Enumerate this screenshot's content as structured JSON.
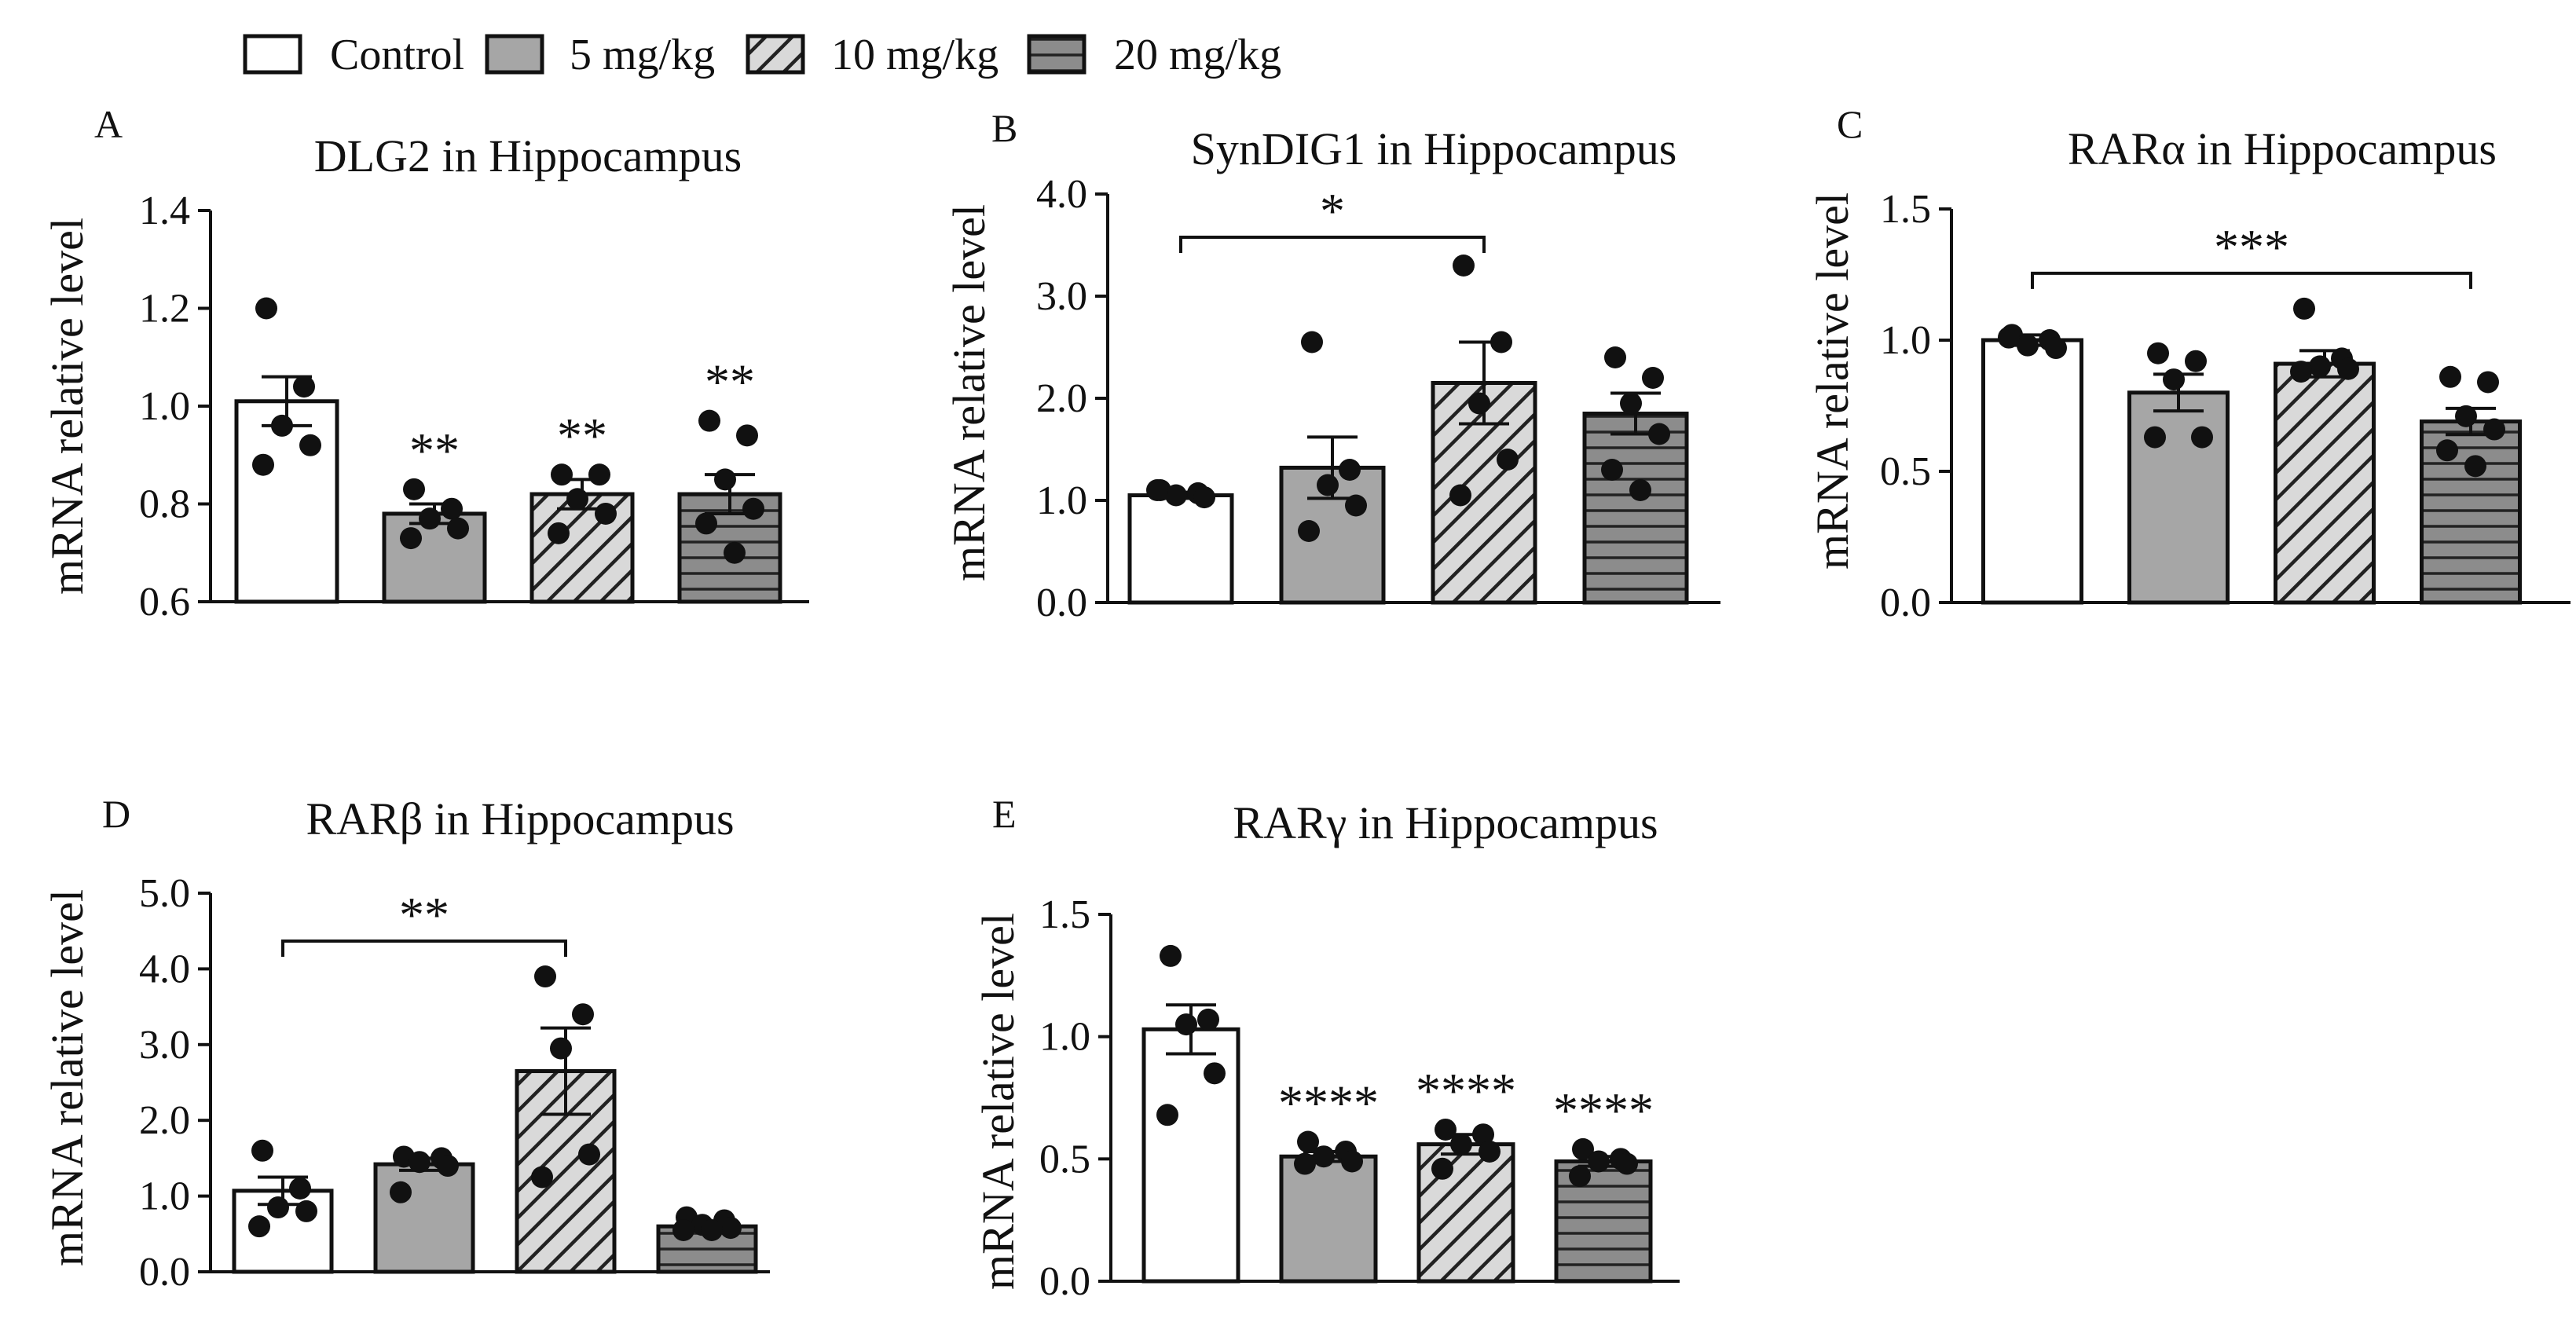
{
  "legend": {
    "items": [
      {
        "label": "Control",
        "pattern": "white"
      },
      {
        "label": "5 mg/kg",
        "pattern": "gray"
      },
      {
        "label": "10 mg/kg",
        "pattern": "diag"
      },
      {
        "label": "20 mg/kg",
        "pattern": "horiz"
      }
    ]
  },
  "colors": {
    "bar_gray": "#a6a6a6",
    "hatch_bg": "#d9d9d9",
    "horiz_bg": "#8c8c8c",
    "ink": "#111111"
  },
  "chart_data": [
    {
      "panel": "A",
      "type": "bar",
      "title": "DLG2 in Hippocampus",
      "ylabel": "mRNA relative level",
      "ylim": [
        0.6,
        1.4
      ],
      "yticks": [
        "0.6",
        "0.8",
        "1.0",
        "1.2",
        "1.4"
      ],
      "categories": [
        "Control",
        "5 mg/kg",
        "10 mg/kg",
        "20 mg/kg"
      ],
      "values": [
        1.01,
        0.78,
        0.82,
        0.82
      ],
      "sem": [
        0.05,
        0.02,
        0.03,
        0.04
      ],
      "points": [
        [
          1.2,
          1.04,
          0.96,
          0.92,
          0.88
        ],
        [
          0.83,
          0.79,
          0.77,
          0.75,
          0.73
        ],
        [
          0.86,
          0.86,
          0.81,
          0.78,
          0.74
        ],
        [
          0.97,
          0.94,
          0.85,
          0.79,
          0.76,
          0.7
        ]
      ],
      "significance": [
        {
          "bar": 1,
          "label": "**"
        },
        {
          "bar": 2,
          "label": "**"
        },
        {
          "bar": 3,
          "label": "**"
        }
      ]
    },
    {
      "panel": "B",
      "type": "bar",
      "title": "SynDIG1 in Hippocampus",
      "ylabel": "mRNA relative level",
      "ylim": [
        0.0,
        4.0
      ],
      "yticks": [
        "0.0",
        "1.0",
        "2.0",
        "3.0",
        "4.0"
      ],
      "categories": [
        "Control",
        "5 mg/kg",
        "10 mg/kg",
        "20 mg/kg"
      ],
      "values": [
        1.05,
        1.32,
        2.15,
        1.85
      ],
      "sem": [
        0.03,
        0.3,
        0.4,
        0.2
      ],
      "points": [
        [
          1.1,
          1.07,
          1.05,
          1.03,
          1.1
        ],
        [
          2.55,
          1.3,
          1.15,
          0.95,
          0.7
        ],
        [
          3.3,
          2.55,
          1.95,
          1.4,
          1.05
        ],
        [
          2.4,
          2.2,
          1.95,
          1.65,
          1.3,
          1.1
        ]
      ],
      "significance": [
        {
          "from": 0,
          "to": 2,
          "label": "*"
        }
      ]
    },
    {
      "panel": "C",
      "type": "bar",
      "title": "RARα in  Hippocampus",
      "ylabel": "mRNA relative level",
      "ylim": [
        0.0,
        1.5
      ],
      "yticks": [
        "0.0",
        "0.5",
        "1.0",
        "1.5"
      ],
      "categories": [
        "Control",
        "5 mg/kg",
        "10 mg/kg",
        "20 mg/kg"
      ],
      "values": [
        1.0,
        0.8,
        0.91,
        0.69
      ],
      "sem": [
        0.02,
        0.07,
        0.05,
        0.05
      ],
      "points": [
        [
          1.02,
          1.0,
          0.98,
          0.97,
          1.01
        ],
        [
          0.95,
          0.92,
          0.85,
          0.63,
          0.63
        ],
        [
          1.12,
          0.93,
          0.9,
          0.89,
          0.88
        ],
        [
          0.86,
          0.84,
          0.71,
          0.66,
          0.58,
          0.52
        ]
      ],
      "significance": [
        {
          "from": 0,
          "to": 3,
          "label": "***"
        }
      ]
    },
    {
      "panel": "D",
      "type": "bar",
      "title": "RARβ in Hippocampus",
      "ylabel": "mRNA relative level",
      "ylim": [
        0.0,
        5.0
      ],
      "yticks": [
        "0.0",
        "1.0",
        "2.0",
        "3.0",
        "4.0",
        "5.0"
      ],
      "categories": [
        "Control",
        "5 mg/kg",
        "10 mg/kg",
        "20 mg/kg"
      ],
      "values": [
        1.07,
        1.42,
        2.65,
        0.6
      ],
      "sem": [
        0.18,
        0.08,
        0.57,
        0.04
      ],
      "points": [
        [
          1.6,
          1.1,
          0.85,
          0.8,
          0.6
        ],
        [
          1.52,
          1.5,
          1.45,
          1.4,
          1.05
        ],
        [
          3.9,
          3.4,
          2.95,
          1.55,
          1.25
        ],
        [
          0.72,
          0.68,
          0.62,
          0.58,
          0.55,
          0.55
        ]
      ],
      "significance": [
        {
          "from": 0,
          "to": 2,
          "label": "**"
        }
      ]
    },
    {
      "panel": "E",
      "type": "bar",
      "title": "RARγ in Hippocampus",
      "ylabel": "mRNA relative level",
      "ylim": [
        0.0,
        1.5
      ],
      "yticks": [
        "0.0",
        "0.5",
        "1.0",
        "1.5"
      ],
      "categories": [
        "Control",
        "5 mg/kg",
        "10 mg/kg",
        "20 mg/kg"
      ],
      "values": [
        1.03,
        0.51,
        0.56,
        0.49
      ],
      "sem": [
        0.1,
        0.02,
        0.04,
        0.02
      ],
      "points": [
        [
          1.33,
          1.07,
          1.05,
          0.85,
          0.68
        ],
        [
          0.57,
          0.53,
          0.51,
          0.49,
          0.48
        ],
        [
          0.62,
          0.6,
          0.56,
          0.53,
          0.46
        ],
        [
          0.54,
          0.5,
          0.49,
          0.48,
          0.43
        ]
      ],
      "significance": [
        {
          "bar": 1,
          "label": "****"
        },
        {
          "bar": 2,
          "label": "****"
        },
        {
          "bar": 3,
          "label": "****"
        }
      ]
    }
  ]
}
